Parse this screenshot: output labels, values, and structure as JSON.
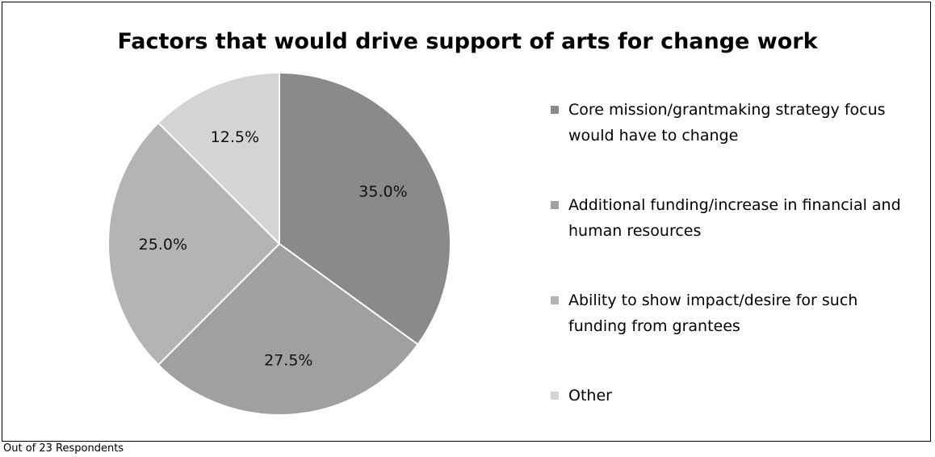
{
  "chart_data": {
    "type": "pie",
    "title": "Factors that would drive support of arts for change work",
    "categories": [
      "Core mission/grantmaking strategy focus would have to change",
      "Additional funding/increase in financial and human resources",
      "Ability to show impact/desire for such funding from grantees",
      "Other"
    ],
    "values": [
      35.0,
      27.5,
      25.0,
      12.5
    ],
    "value_labels": [
      "35.0%",
      "27.5%",
      "25.0%",
      "12.5%"
    ],
    "colors": [
      "#8a8a8a",
      "#a0a0a0",
      "#b4b4b4",
      "#d4d4d4"
    ],
    "legend_placement": "right"
  },
  "legend": {
    "items": [
      "Core mission/grantmaking strategy focus would have to change",
      "Additional funding/increase in financial and human resources",
      "Ability to show impact/desire for such funding from grantees",
      "Other"
    ]
  },
  "footnote": "Out of 23 Respondents"
}
